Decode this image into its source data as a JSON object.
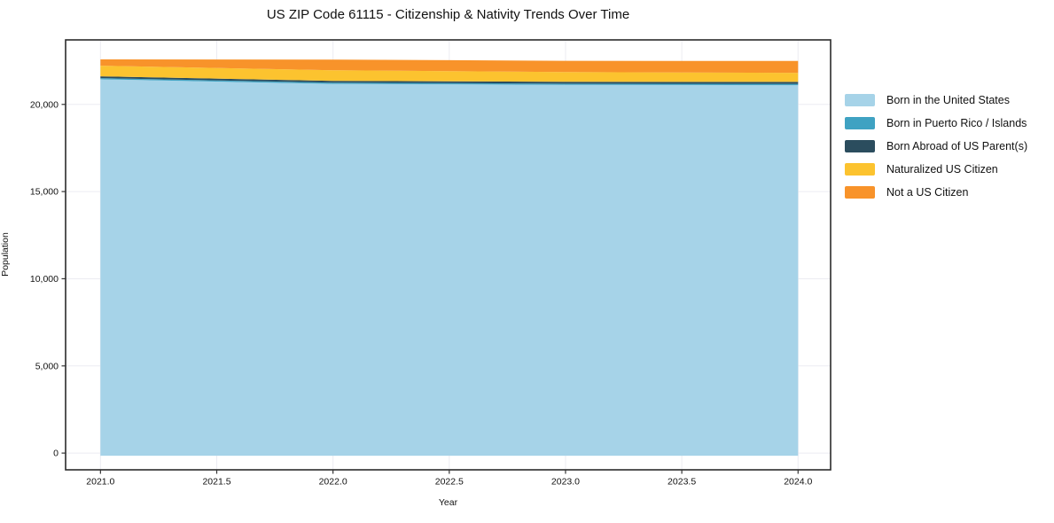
{
  "chart": {
    "title": "US ZIP Code 61115 - Citizenship & Nativity Trends Over Time",
    "xlabel": "Year",
    "ylabel": "Population"
  },
  "chart_data": {
    "type": "area",
    "stacked": true,
    "title": "US ZIP Code 61115 - Citizenship & Nativity Trends Over Time",
    "xlabel": "Year",
    "ylabel": "Population",
    "x": [
      2021,
      2022,
      2023,
      2024
    ],
    "series": [
      {
        "name": "Born in the United States",
        "color": "#a6d3e8",
        "values": [
          21440,
          21180,
          21120,
          21100
        ]
      },
      {
        "name": "Born in Puerto Rico / Islands",
        "color": "#3fa2c2",
        "values": [
          70,
          70,
          70,
          80
        ]
      },
      {
        "name": "Born Abroad of US Parent(s)",
        "color": "#2b4d5e",
        "values": [
          100,
          100,
          105,
          110
        ]
      },
      {
        "name": "Naturalized US Citizen",
        "color": "#fcc32f",
        "values": [
          610,
          610,
          560,
          520
        ]
      },
      {
        "name": "Not a US Citizen",
        "color": "#f8932a",
        "values": [
          360,
          610,
          645,
          680
        ]
      }
    ],
    "x_ticks": {
      "values": [
        2021.0,
        2021.5,
        2022.0,
        2022.5,
        2023.0,
        2023.5,
        2024.0
      ],
      "labels": [
        "2021.0",
        "2021.5",
        "2022.0",
        "2022.5",
        "2023.0",
        "2023.5",
        "2024.0"
      ]
    },
    "y_ticks": {
      "values": [
        0,
        5000,
        10000,
        15000,
        20000
      ],
      "labels": [
        "0",
        "5,000",
        "10,000",
        "15,000",
        "20,000"
      ]
    },
    "xlim": [
      2020.85,
      2024.14
    ],
    "ylim": [
      -960,
      23700
    ],
    "grid": true,
    "legend_position": "right-top-outside"
  },
  "colors": {
    "background": "#ffffff",
    "grid": "#ececf2",
    "spine": "#2b2b2b",
    "tick": "#333333",
    "text": "#111111"
  }
}
